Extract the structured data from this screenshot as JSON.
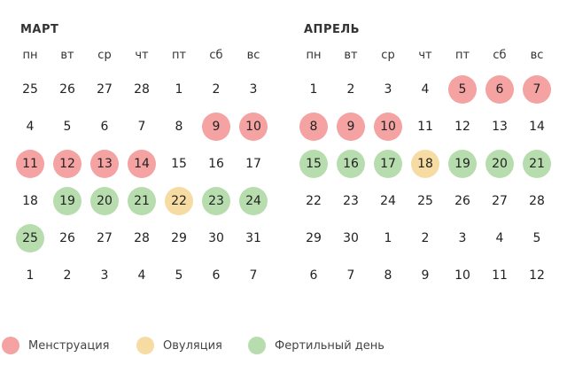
{
  "colors": {
    "menstruation": "#f4a2a2",
    "ovulation": "#f6dca2",
    "fertile": "#b7dcae"
  },
  "weekdays": [
    "пн",
    "вт",
    "ср",
    "чт",
    "пт",
    "сб",
    "вс"
  ],
  "months": [
    {
      "title": "МАРТ",
      "days": [
        {
          "d": "25",
          "s": ""
        },
        {
          "d": "26",
          "s": ""
        },
        {
          "d": "27",
          "s": ""
        },
        {
          "d": "28",
          "s": ""
        },
        {
          "d": "1",
          "s": ""
        },
        {
          "d": "2",
          "s": ""
        },
        {
          "d": "3",
          "s": ""
        },
        {
          "d": "4",
          "s": ""
        },
        {
          "d": "5",
          "s": ""
        },
        {
          "d": "6",
          "s": ""
        },
        {
          "d": "7",
          "s": ""
        },
        {
          "d": "8",
          "s": ""
        },
        {
          "d": "9",
          "s": "menstruation"
        },
        {
          "d": "10",
          "s": "menstruation"
        },
        {
          "d": "11",
          "s": "menstruation"
        },
        {
          "d": "12",
          "s": "menstruation"
        },
        {
          "d": "13",
          "s": "menstruation"
        },
        {
          "d": "14",
          "s": "menstruation"
        },
        {
          "d": "15",
          "s": ""
        },
        {
          "d": "16",
          "s": ""
        },
        {
          "d": "17",
          "s": ""
        },
        {
          "d": "18",
          "s": ""
        },
        {
          "d": "19",
          "s": "fertile"
        },
        {
          "d": "20",
          "s": "fertile"
        },
        {
          "d": "21",
          "s": "fertile"
        },
        {
          "d": "22",
          "s": "ovulation"
        },
        {
          "d": "23",
          "s": "fertile"
        },
        {
          "d": "24",
          "s": "fertile"
        },
        {
          "d": "25",
          "s": "fertile"
        },
        {
          "d": "26",
          "s": ""
        },
        {
          "d": "27",
          "s": ""
        },
        {
          "d": "28",
          "s": ""
        },
        {
          "d": "29",
          "s": ""
        },
        {
          "d": "30",
          "s": ""
        },
        {
          "d": "31",
          "s": ""
        },
        {
          "d": "1",
          "s": ""
        },
        {
          "d": "2",
          "s": ""
        },
        {
          "d": "3",
          "s": ""
        },
        {
          "d": "4",
          "s": ""
        },
        {
          "d": "5",
          "s": ""
        },
        {
          "d": "6",
          "s": ""
        },
        {
          "d": "7",
          "s": ""
        }
      ]
    },
    {
      "title": "АПРЕЛЬ",
      "days": [
        {
          "d": "1",
          "s": ""
        },
        {
          "d": "2",
          "s": ""
        },
        {
          "d": "3",
          "s": ""
        },
        {
          "d": "4",
          "s": ""
        },
        {
          "d": "5",
          "s": "menstruation"
        },
        {
          "d": "6",
          "s": "menstruation"
        },
        {
          "d": "7",
          "s": "menstruation"
        },
        {
          "d": "8",
          "s": "menstruation"
        },
        {
          "d": "9",
          "s": "menstruation"
        },
        {
          "d": "10",
          "s": "menstruation"
        },
        {
          "d": "11",
          "s": ""
        },
        {
          "d": "12",
          "s": ""
        },
        {
          "d": "13",
          "s": ""
        },
        {
          "d": "14",
          "s": ""
        },
        {
          "d": "15",
          "s": "fertile"
        },
        {
          "d": "16",
          "s": "fertile"
        },
        {
          "d": "17",
          "s": "fertile"
        },
        {
          "d": "18",
          "s": "ovulation"
        },
        {
          "d": "19",
          "s": "fertile"
        },
        {
          "d": "20",
          "s": "fertile"
        },
        {
          "d": "21",
          "s": "fertile"
        },
        {
          "d": "22",
          "s": ""
        },
        {
          "d": "23",
          "s": ""
        },
        {
          "d": "24",
          "s": ""
        },
        {
          "d": "25",
          "s": ""
        },
        {
          "d": "26",
          "s": ""
        },
        {
          "d": "27",
          "s": ""
        },
        {
          "d": "28",
          "s": ""
        },
        {
          "d": "29",
          "s": ""
        },
        {
          "d": "30",
          "s": ""
        },
        {
          "d": "1",
          "s": ""
        },
        {
          "d": "2",
          "s": ""
        },
        {
          "d": "3",
          "s": ""
        },
        {
          "d": "4",
          "s": ""
        },
        {
          "d": "5",
          "s": ""
        },
        {
          "d": "6",
          "s": ""
        },
        {
          "d": "7",
          "s": ""
        },
        {
          "d": "8",
          "s": ""
        },
        {
          "d": "9",
          "s": ""
        },
        {
          "d": "10",
          "s": ""
        },
        {
          "d": "11",
          "s": ""
        },
        {
          "d": "12",
          "s": ""
        }
      ]
    }
  ],
  "legend": {
    "menstruation": "Менструация",
    "ovulation": "Овуляция",
    "fertile": "Фертильный день"
  }
}
